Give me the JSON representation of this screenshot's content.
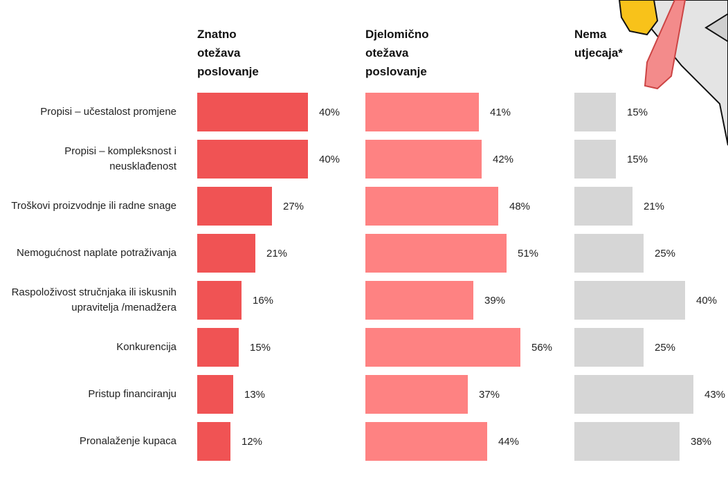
{
  "chart_data": {
    "type": "bar",
    "categories": [
      "Propisi – učestalost promjene",
      "Propisi – kompleksnost i neusklađenost",
      "Troškovi proizvodnje ili radne snage",
      "Nemogućnost naplate potraživanja",
      "Raspoloživost stručnjaka ili iskusnih upravitelja /menadžera",
      "Konkurencija",
      "Pristup financiranju",
      "Pronalaženje kupaca"
    ],
    "series": [
      {
        "name": "Znatno otežava poslovanje",
        "color": "#f05354",
        "values": [
          40,
          40,
          27,
          21,
          16,
          15,
          13,
          12
        ],
        "value_labels": [
          "40%",
          "40%",
          "27%",
          "21%",
          "16%",
          "15%",
          "13%",
          "12%"
        ]
      },
      {
        "name": "Djelomično otežava poslovanje",
        "color": "#fe8282",
        "values": [
          41,
          42,
          48,
          51,
          39,
          56,
          37,
          44
        ],
        "value_labels": [
          "41%",
          "42%",
          "48%",
          "51%",
          "39%",
          "56%",
          "37%",
          "44%"
        ]
      },
      {
        "name": "Nema utjecaja*",
        "color": "#d6d6d6",
        "values": [
          15,
          15,
          21,
          25,
          40,
          25,
          43,
          38
        ],
        "value_labels": [
          "15%",
          "15%",
          "21%",
          "25%",
          "40%",
          "25%",
          "43%",
          "38%"
        ]
      }
    ],
    "xlim": [
      0,
      60
    ]
  }
}
